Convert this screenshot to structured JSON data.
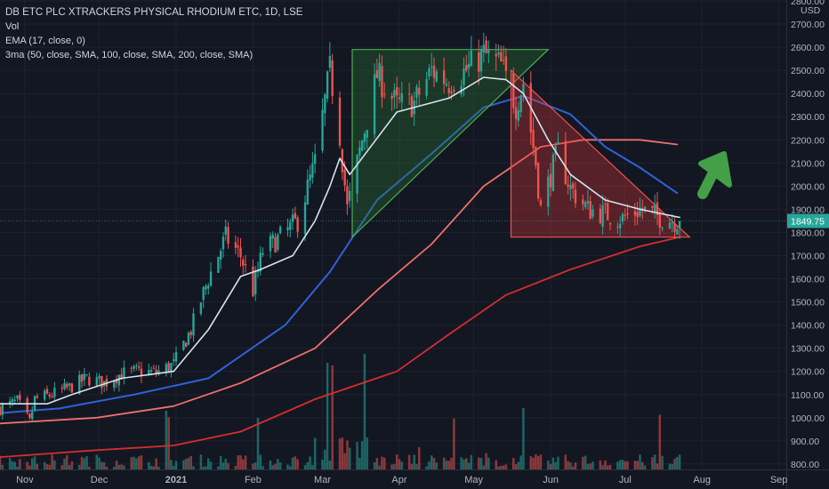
{
  "legend": {
    "title": "DB ETC PLC XTRACKERS PHYSICAL RHODIUM ETC, 1D, LSE",
    "vol": "Vol",
    "ema": "EMA (17, close, 0)",
    "ma3": "3ma (50, close, SMA, 100, close, SMA, 200, close, SMA)"
  },
  "colors": {
    "background": "#131722",
    "grid": "#1e2230",
    "up": "#26a69a",
    "down": "#ef5350",
    "ema": "#d6e4f0",
    "sma50": "#2f62d4",
    "sma100": "#ef6f6c",
    "sma200": "#d32f2f",
    "triangle_green": "#2e7d32",
    "triangle_red": "#e53935",
    "arrow": "#43a047",
    "price_label": "#26a69a"
  },
  "chart_data": {
    "type": "candlestick",
    "title": "DB ETC PLC XTRACKERS PHYSICAL RHODIUM ETC, 1D, LSE",
    "currency": "USD",
    "last_price": "1849.75",
    "x_ticks": [
      "Nov",
      "Dec",
      "2021",
      "Feb",
      "Mar",
      "Apr",
      "May",
      "Jun",
      "Jul",
      "Aug",
      "Sep"
    ],
    "x_range": [
      "2020-10-22",
      "2021-09-04"
    ],
    "y_ticks": [
      "800.00",
      "900.00",
      "1000.00",
      "1100.00",
      "1200.00",
      "1300.00",
      "1400.00",
      "1500.00",
      "1600.00",
      "1700.00",
      "1800.00",
      "1900.00",
      "2000.00",
      "2100.00",
      "2200.00",
      "2300.00",
      "2400.00",
      "2500.00",
      "2600.00",
      "2700.00",
      "2800.00"
    ],
    "ylim": [
      792,
      2800
    ],
    "close_path": [
      [
        "2020-10-22",
        1040
      ],
      [
        "2020-10-29",
        1070
      ],
      [
        "2020-11-03",
        980
      ],
      [
        "2020-11-05",
        1080
      ],
      [
        "2020-11-12",
        1100
      ],
      [
        "2020-11-19",
        1130
      ],
      [
        "2020-11-26",
        1170
      ],
      [
        "2020-12-03",
        1150
      ],
      [
        "2020-12-10",
        1190
      ],
      [
        "2020-12-17",
        1200
      ],
      [
        "2020-12-24",
        1195
      ],
      [
        "2020-12-31",
        1230
      ],
      [
        "2021-01-07",
        1380
      ],
      [
        "2021-01-14",
        1600
      ],
      [
        "2021-01-21",
        1780
      ],
      [
        "2021-01-27",
        1700
      ],
      [
        "2021-02-01",
        1550
      ],
      [
        "2021-02-05",
        1720
      ],
      [
        "2021-02-12",
        1780
      ],
      [
        "2021-02-19",
        1850
      ],
      [
        "2021-02-26",
        2100
      ],
      [
        "2021-03-04",
        2500
      ],
      [
        "2021-03-08",
        2220
      ],
      [
        "2021-03-11",
        1900
      ],
      [
        "2021-03-16",
        2150
      ],
      [
        "2021-03-23",
        2480
      ],
      [
        "2021-03-31",
        2350
      ],
      [
        "2021-04-07",
        2360
      ],
      [
        "2021-04-14",
        2500
      ],
      [
        "2021-04-21",
        2450
      ],
      [
        "2021-04-28",
        2500
      ],
      [
        "2021-05-05",
        2570
      ],
      [
        "2021-05-12",
        2520
      ],
      [
        "2021-05-18",
        2350
      ],
      [
        "2021-05-21",
        2450
      ],
      [
        "2021-05-26",
        2100
      ],
      [
        "2021-05-28",
        1900
      ],
      [
        "2021-06-01",
        2050
      ],
      [
        "2021-06-04",
        2150
      ],
      [
        "2021-06-09",
        1990
      ],
      [
        "2021-06-16",
        1900
      ],
      [
        "2021-06-23",
        1880
      ],
      [
        "2021-06-30",
        1860
      ],
      [
        "2021-07-07",
        1900
      ],
      [
        "2021-07-14",
        1870
      ],
      [
        "2021-07-21",
        1850
      ],
      [
        "2021-07-23",
        1849.75
      ]
    ],
    "ema17": [
      [
        "2020-10-22",
        1060
      ],
      [
        "2020-11-10",
        1060
      ],
      [
        "2020-11-20",
        1100
      ],
      [
        "2020-12-10",
        1170
      ],
      [
        "2020-12-31",
        1200
      ],
      [
        "2021-01-14",
        1380
      ],
      [
        "2021-01-27",
        1610
      ],
      [
        "2021-02-04",
        1640
      ],
      [
        "2021-02-17",
        1700
      ],
      [
        "2021-02-26",
        1850
      ],
      [
        "2021-03-04",
        2000
      ],
      [
        "2021-03-08",
        2120
      ],
      [
        "2021-03-12",
        2050
      ],
      [
        "2021-03-19",
        2150
      ],
      [
        "2021-03-31",
        2320
      ],
      [
        "2021-04-21",
        2380
      ],
      [
        "2021-05-05",
        2470
      ],
      [
        "2021-05-14",
        2460
      ],
      [
        "2021-05-21",
        2400
      ],
      [
        "2021-05-31",
        2200
      ],
      [
        "2021-06-09",
        2050
      ],
      [
        "2021-06-23",
        1940
      ],
      [
        "2021-07-07",
        1900
      ],
      [
        "2021-07-23",
        1865
      ]
    ],
    "sma50": [
      [
        "2020-10-22",
        1020
      ],
      [
        "2020-11-15",
        1040
      ],
      [
        "2020-12-15",
        1100
      ],
      [
        "2021-01-14",
        1170
      ],
      [
        "2021-02-14",
        1400
      ],
      [
        "2021-03-04",
        1630
      ],
      [
        "2021-03-23",
        1940
      ],
      [
        "2021-04-14",
        2140
      ],
      [
        "2021-05-05",
        2340
      ],
      [
        "2021-05-21",
        2390
      ],
      [
        "2021-06-09",
        2310
      ],
      [
        "2021-06-23",
        2170
      ],
      [
        "2021-07-07",
        2080
      ],
      [
        "2021-07-22",
        1970
      ]
    ],
    "sma100": [
      [
        "2020-10-22",
        975
      ],
      [
        "2020-11-30",
        1000
      ],
      [
        "2020-12-31",
        1050
      ],
      [
        "2021-01-27",
        1150
      ],
      [
        "2021-02-26",
        1300
      ],
      [
        "2021-03-23",
        1550
      ],
      [
        "2021-04-14",
        1750
      ],
      [
        "2021-05-05",
        2000
      ],
      [
        "2021-05-28",
        2170
      ],
      [
        "2021-06-14",
        2200
      ],
      [
        "2021-07-07",
        2200
      ],
      [
        "2021-07-22",
        2180
      ]
    ],
    "sma200": [
      [
        "2020-10-22",
        830
      ],
      [
        "2020-11-30",
        860
      ],
      [
        "2020-12-31",
        880
      ],
      [
        "2021-01-27",
        940
      ],
      [
        "2021-02-26",
        1080
      ],
      [
        "2021-03-31",
        1200
      ],
      [
        "2021-04-21",
        1360
      ],
      [
        "2021-05-14",
        1530
      ],
      [
        "2021-06-09",
        1640
      ],
      [
        "2021-07-07",
        1740
      ],
      [
        "2021-07-23",
        1780
      ]
    ],
    "annotations": {
      "green_triangle": [
        [
          "2021-03-13",
          2590
        ],
        [
          "2021-05-31",
          2590
        ],
        [
          "2021-03-13",
          1780
        ]
      ],
      "red_triangle": [
        [
          "2021-05-16",
          2500
        ],
        [
          "2021-05-16",
          1780
        ],
        [
          "2021-07-27",
          1780
        ]
      ],
      "arrow": "up-right"
    },
    "volume_note": "volume bars at bottom, colored by candle direction"
  }
}
